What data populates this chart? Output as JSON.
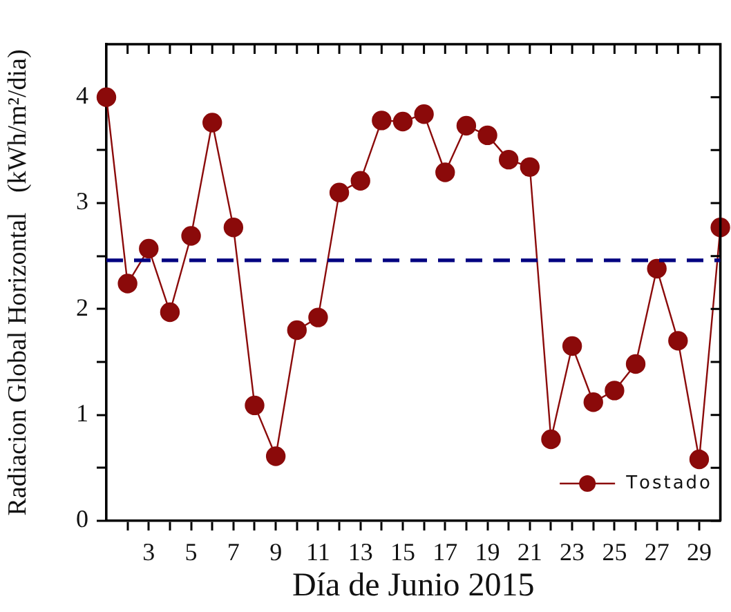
{
  "chart_data": {
    "type": "line",
    "xlabel": "Día de Junio 2015",
    "ylabel": "Radiacion Global Horizontal   (kWh/m²/dia)",
    "x": [
      1,
      2,
      3,
      4,
      5,
      6,
      7,
      8,
      9,
      10,
      11,
      12,
      13,
      14,
      15,
      16,
      17,
      18,
      19,
      20,
      21,
      22,
      23,
      24,
      25,
      26,
      27,
      28,
      29,
      30
    ],
    "series": [
      {
        "name": "Tostado",
        "color": "#8b0a0a",
        "values": [
          4.0,
          2.24,
          2.57,
          1.97,
          2.69,
          3.76,
          2.77,
          1.09,
          0.61,
          1.8,
          1.92,
          3.1,
          3.21,
          3.78,
          3.77,
          3.84,
          3.29,
          3.73,
          3.64,
          3.41,
          3.34,
          0.77,
          1.65,
          1.12,
          1.23,
          1.48,
          2.38,
          1.7,
          0.58,
          2.77
        ]
      }
    ],
    "xlim": [
      1,
      30
    ],
    "xticks": [
      {
        "value": 2,
        "label": null
      },
      3,
      {
        "value": 4,
        "label": null
      },
      5,
      {
        "value": 6,
        "label": null
      },
      7,
      {
        "value": 8,
        "label": null
      },
      9,
      {
        "value": 10,
        "label": null
      },
      11,
      {
        "value": 12,
        "label": null
      },
      13,
      {
        "value": 14,
        "label": null
      },
      15,
      {
        "value": 16,
        "label": null
      },
      17,
      {
        "value": 18,
        "label": null
      },
      19,
      {
        "value": 20,
        "label": null
      },
      21,
      {
        "value": 22,
        "label": null
      },
      23,
      {
        "value": 24,
        "label": null
      },
      25,
      {
        "value": 26,
        "label": null
      },
      27,
      {
        "value": 28,
        "label": null
      },
      29
    ],
    "ylim": [
      0,
      4.5
    ],
    "yticks": [
      0,
      {
        "value": 0.5,
        "label": null
      },
      1,
      {
        "value": 1.5,
        "label": null
      },
      2,
      {
        "value": 2.5,
        "label": null
      },
      3,
      {
        "value": 3.5,
        "label": null
      },
      4
    ],
    "ref_lines": [
      {
        "axis": "y",
        "value": 2.46,
        "color": "#000080",
        "line_style": "dashed"
      }
    ],
    "grid": false,
    "legend": "bottom right",
    "marker": "circle",
    "line_style": "solid"
  }
}
